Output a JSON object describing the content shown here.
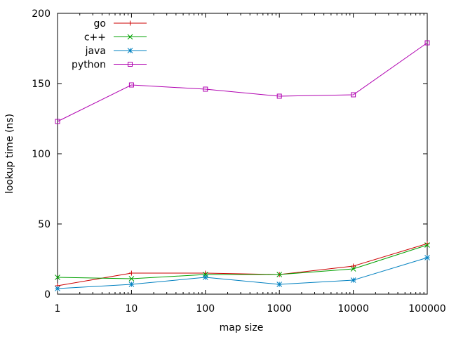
{
  "chart_data": {
    "type": "line",
    "title": "",
    "xlabel": "map size",
    "ylabel": "lookup time (ns)",
    "x_scale": "log",
    "x": [
      1,
      10,
      100,
      1000,
      10000,
      100000
    ],
    "x_tick_labels": [
      "1",
      "10",
      "100",
      "1000",
      "10000",
      "100000"
    ],
    "ylim": [
      0,
      200
    ],
    "y_ticks": [
      0,
      50,
      100,
      150,
      200
    ],
    "y_tick_labels": [
      "0",
      "50",
      "100",
      "150",
      "200"
    ],
    "grid": false,
    "legend_position": "top-left",
    "series": [
      {
        "name": "go",
        "color": "#cc0000",
        "marker": "plus",
        "values": [
          6,
          15,
          15,
          14,
          20,
          36
        ]
      },
      {
        "name": "c++",
        "color": "#00a000",
        "marker": "cross",
        "values": [
          12,
          11,
          14,
          14,
          18,
          35
        ]
      },
      {
        "name": "java",
        "color": "#0080c0",
        "marker": "star",
        "values": [
          4,
          7,
          12,
          7,
          10,
          26
        ]
      },
      {
        "name": "python",
        "color": "#b000b0",
        "marker": "square",
        "values": [
          123,
          149,
          146,
          141,
          142,
          179
        ]
      }
    ]
  }
}
